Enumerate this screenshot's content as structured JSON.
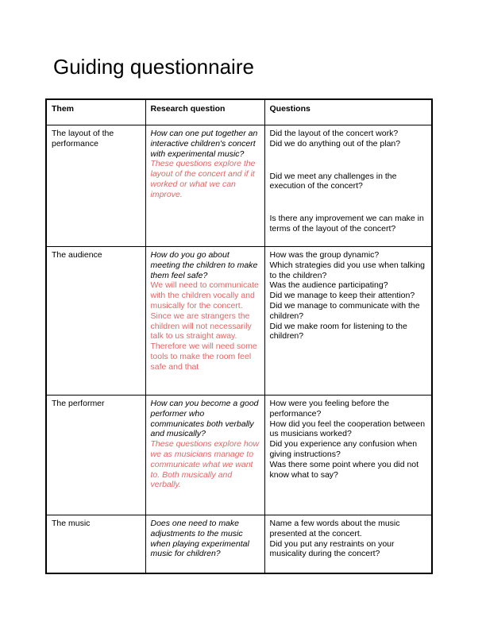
{
  "page": {
    "title": "Guiding questionnaire"
  },
  "colors": {
    "note_red": "#e06666",
    "text": "#000000",
    "border": "#000000",
    "page_bg": "#ffffff"
  },
  "table": {
    "headers": [
      "Them",
      "Research question",
      "Questions"
    ],
    "rows": [
      {
        "them": "The layout of the performance",
        "research_question": "How can one put together an interactive children's concert with experimental music?",
        "research_note": "These questions explore the layout of the concert and if it worked or what we can improve.",
        "questions": [
          "Did the layout of the concert work?",
          "Did we do anything out of the plan?",
          "Did we meet any challenges in the execution of the concert?",
          "Is there any improvement we can make in terms of the layout of the concert?"
        ]
      },
      {
        "them": "The audience",
        "research_question": "How do you go about meeting the children to make them feel safe?",
        "research_note": "We will need to communicate with the children vocally and musically for the concert. Since we are strangers the children will not necessarily talk to us straight away. Therefore we will need some tools to make the room feel safe and that",
        "questions": [
          "How was the group dynamic?",
          "Which strategies did you use when talking to the children?",
          "Was the audience participating?",
          "Did we manage to keep their attention?",
          "Did we manage to communicate with the children?",
          "Did we make room for listening to the children?"
        ]
      },
      {
        "them": "The performer",
        "research_question": "How can you become a good performer who communicates both verbally and musically?",
        "research_note": "These questions explore how we as musicians manage to communicate what we want to. Both musically and verbally.",
        "questions": [
          "How were you feeling before the performance?",
          "How did you feel the cooperation between us musicians worked?",
          "Did you experience any confusion when giving instructions?",
          "Was there some point where you did not know what to say?"
        ]
      },
      {
        "them": "The music",
        "research_question": "Does one need to make adjustments to the music when playing experimental music for children?",
        "questions": [
          "Name a few words about the music presented at the concert.",
          "Did you put any restraints on your musicality during the concert?"
        ]
      }
    ]
  }
}
